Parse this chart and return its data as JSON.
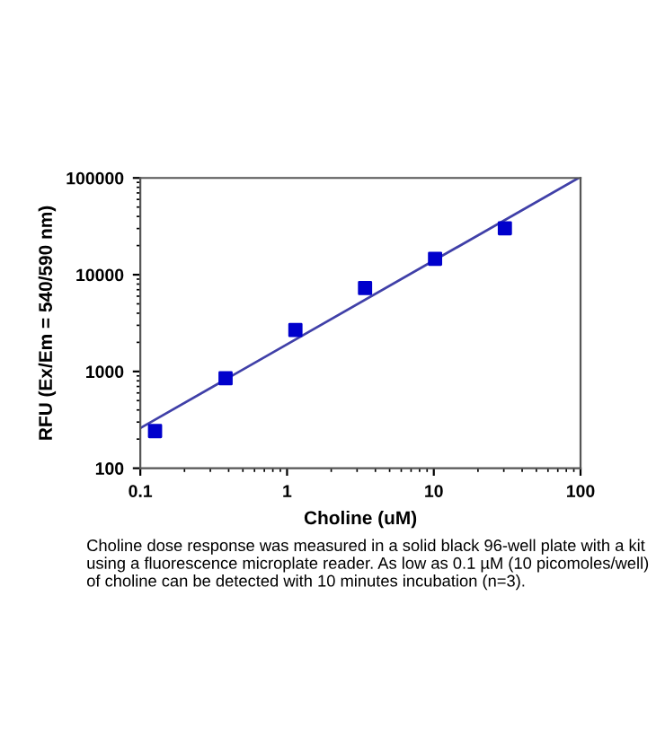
{
  "chart_data": {
    "type": "scatter",
    "xlabel": "Choline (uM)",
    "ylabel": "RFU (Ex/Em = 540/590 nm)",
    "x": [
      0.126,
      0.381,
      1.14,
      3.4,
      10.2,
      30.5
    ],
    "series": [
      {
        "type": "scatter",
        "color": "#0000cc",
        "marker": "square",
        "values": [
          242,
          850,
          2680,
          7270,
          14600,
          30200
        ]
      },
      {
        "type": "line",
        "color": "#4040a8",
        "marker": "none",
        "line_style": "solid",
        "x": [
          0.1,
          97
        ],
        "values": [
          260,
          100000
        ]
      }
    ],
    "log": "xy",
    "xlim": [
      0.1,
      100
    ],
    "ylim": [
      100,
      100000
    ],
    "xticks": [
      0.1,
      1,
      10,
      100
    ],
    "yticks": [
      100,
      1000,
      10000,
      100000
    ],
    "grid": false,
    "legend": false,
    "annotations": [
      "Choline dose response was measured in a solid black 96-well plate with a kit using a fluorescence microplate reader. As low as 0.1 µM (10 picomoles/well) of choline can be detected with 10 minutes incubation (n=3)."
    ]
  }
}
